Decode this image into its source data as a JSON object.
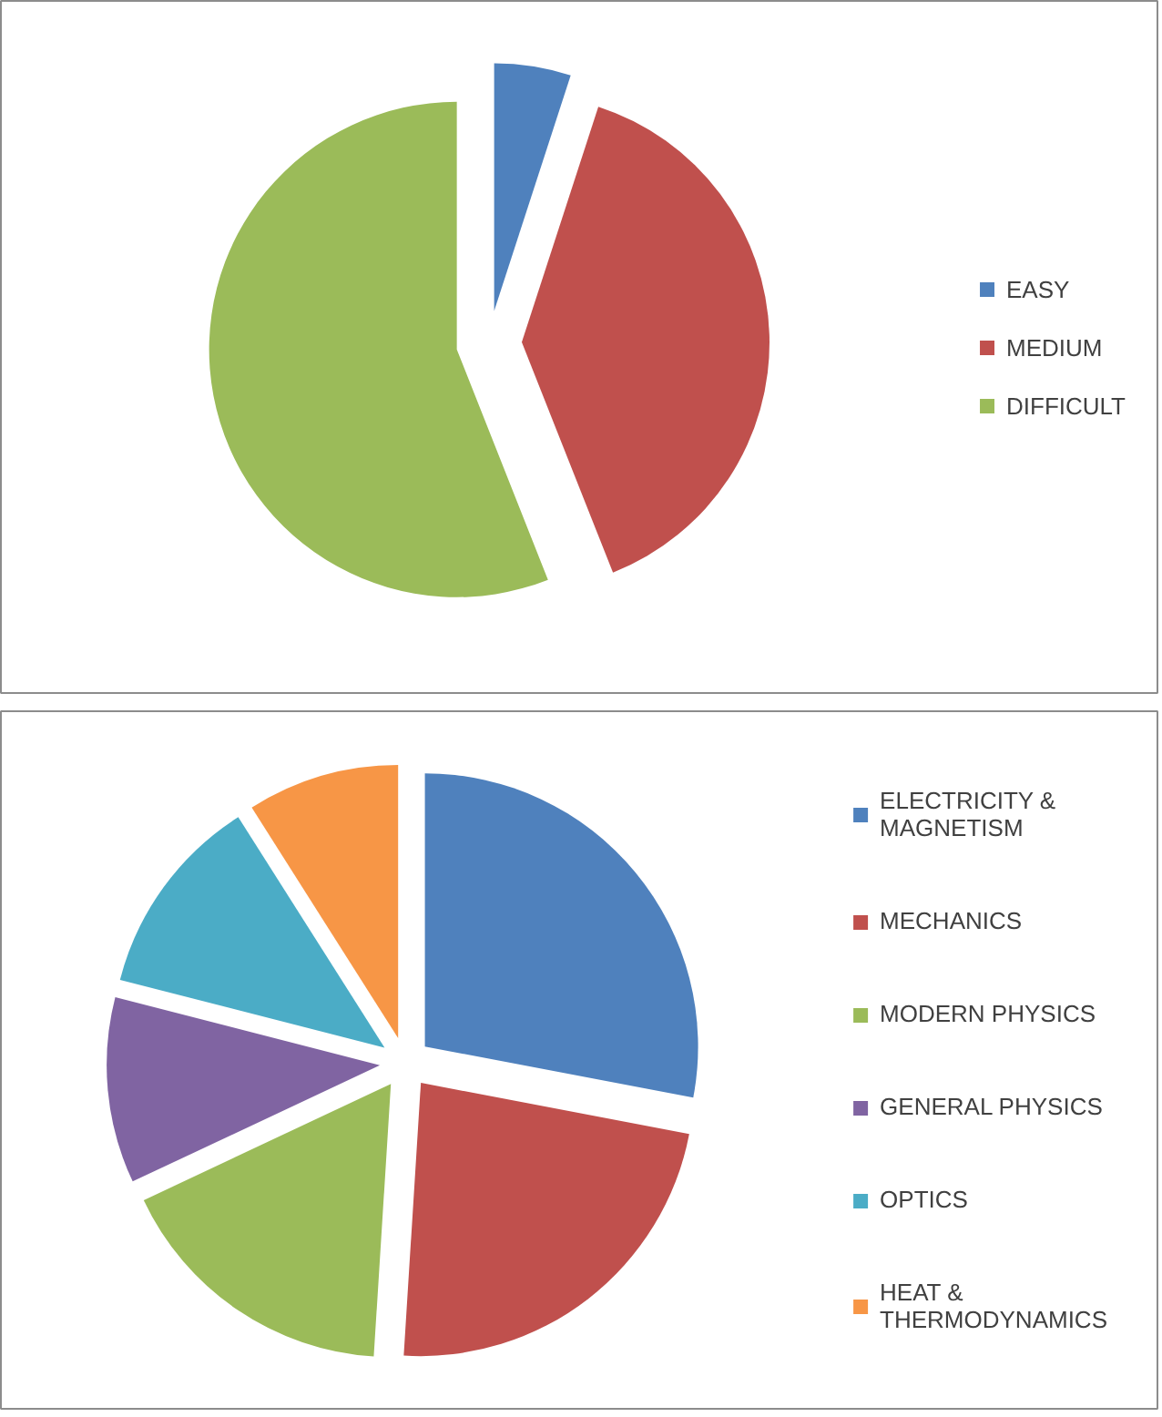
{
  "chart_data": [
    {
      "type": "pie",
      "categories": [
        "EASY",
        "MEDIUM",
        "DIFFICULT"
      ],
      "values": [
        5,
        39,
        56
      ],
      "colors": [
        "#4f81bd",
        "#c0504d",
        "#9bbb59"
      ],
      "legend": "right"
    },
    {
      "type": "pie",
      "categories": [
        "ELECTRICITY & MAGNETISM",
        "MECHANICS",
        "MODERN PHYSICS",
        "GENERAL PHYSICS",
        "OPTICS",
        "HEAT & THERMODYNAMICS"
      ],
      "values": [
        28,
        23,
        17,
        11,
        12,
        9
      ],
      "colors": [
        "#4f81bd",
        "#c0504d",
        "#9bbb59",
        "#8064a2",
        "#4bacc6",
        "#f79646"
      ],
      "legend": "right"
    }
  ]
}
